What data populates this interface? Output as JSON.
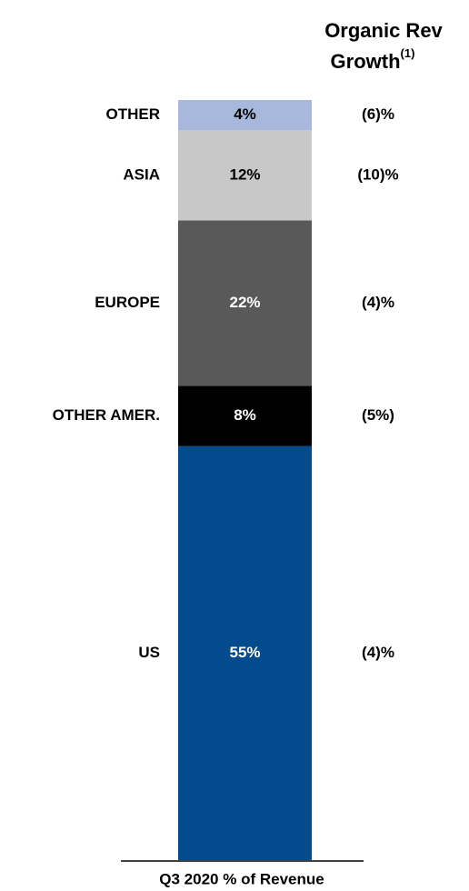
{
  "chart_data": {
    "type": "stacked-bar",
    "xlabel": "Q3 2020 % of Revenue",
    "growth_header": [
      "Organic Rev",
      "Growth"
    ],
    "growth_footnote": "(1)",
    "series": [
      {
        "name": "US",
        "color": "#034b8c",
        "values": [
          55
        ],
        "value_labels": [
          "55%"
        ],
        "growth": "(4)%"
      },
      {
        "name": "OTHER AMER.",
        "color": "#000000",
        "values": [
          8
        ],
        "value_labels": [
          "8%"
        ],
        "growth": "(5%)"
      },
      {
        "name": "EUROPE",
        "color": "#595959",
        "values": [
          22
        ],
        "value_labels": [
          "22%"
        ],
        "growth": "(4)%"
      },
      {
        "name": "ASIA",
        "color": "#c8c8c8",
        "values": [
          12
        ],
        "value_labels": [
          "12%"
        ],
        "growth": "(10)%"
      },
      {
        "name": "OTHER",
        "color": "#a7b8dc",
        "values": [
          4
        ],
        "value_labels": [
          "4%"
        ],
        "growth": "(6)%"
      }
    ]
  }
}
